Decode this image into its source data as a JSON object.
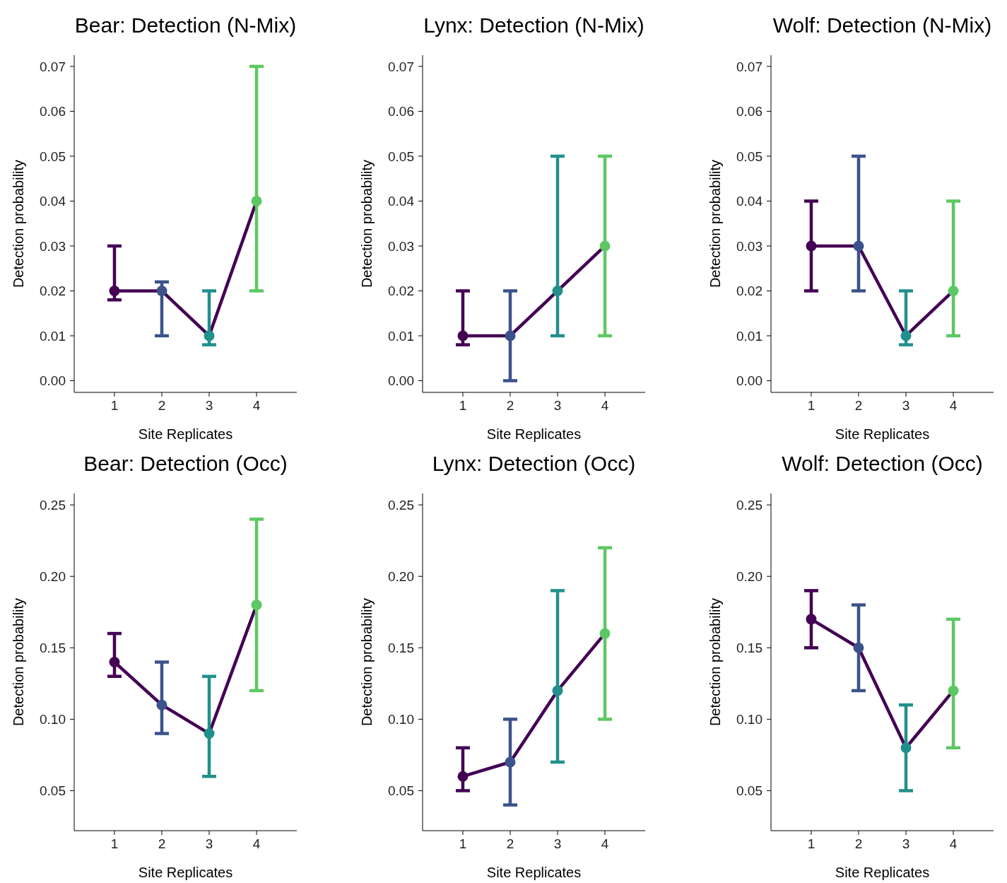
{
  "chart_data": [
    {
      "type": "line",
      "title": "Bear: Detection (N-Mix)",
      "xlabel": "Site Replicates",
      "ylabel": "Detection probability",
      "categories": [
        "1",
        "2",
        "3",
        "4"
      ],
      "values": [
        0.02,
        0.02,
        0.01,
        0.04
      ],
      "errors": [
        [
          0.018,
          0.03
        ],
        [
          0.01,
          0.022
        ],
        [
          0.008,
          0.02
        ],
        [
          0.02,
          0.07
        ]
      ],
      "color": "#440154",
      "colors": [
        "#440154",
        "#3b528b",
        "#21908c",
        "#5dc863"
      ],
      "marker": "circle",
      "ylim": [
        -0.0026,
        0.0725
      ],
      "yticks": [
        {
          "value": 0,
          "label": "0.00"
        },
        {
          "value": 0.01,
          "label": "0.01"
        },
        {
          "value": 0.02,
          "label": "0.02"
        },
        {
          "value": 0.03,
          "label": "0.03"
        },
        {
          "value": 0.04,
          "label": "0.04"
        },
        {
          "value": 0.05,
          "label": "0.05"
        },
        {
          "value": 0.06,
          "label": "0.06"
        },
        {
          "value": 0.07,
          "label": "0.07"
        }
      ],
      "grid": false
    },
    {
      "type": "line",
      "title": "Lynx: Detection (N-Mix)",
      "xlabel": "Site Replicates",
      "ylabel": "Detection probability",
      "categories": [
        "1",
        "2",
        "3",
        "4"
      ],
      "values": [
        0.01,
        0.01,
        0.02,
        0.03
      ],
      "errors": [
        [
          0.008,
          0.02
        ],
        [
          0,
          0.02
        ],
        [
          0.01,
          0.05
        ],
        [
          0.01,
          0.05
        ]
      ],
      "color": "#440154",
      "colors": [
        "#440154",
        "#3b528b",
        "#21908c",
        "#5dc863"
      ],
      "marker": "circle",
      "ylim": [
        -0.0026,
        0.0725
      ],
      "yticks": [
        {
          "value": 0,
          "label": "0.00"
        },
        {
          "value": 0.01,
          "label": "0.01"
        },
        {
          "value": 0.02,
          "label": "0.02"
        },
        {
          "value": 0.03,
          "label": "0.03"
        },
        {
          "value": 0.04,
          "label": "0.04"
        },
        {
          "value": 0.05,
          "label": "0.05"
        },
        {
          "value": 0.06,
          "label": "0.06"
        },
        {
          "value": 0.07,
          "label": "0.07"
        }
      ],
      "grid": false
    },
    {
      "type": "line",
      "title": "Wolf: Detection (N-Mix)",
      "xlabel": "Site Replicates",
      "ylabel": "Detection probability",
      "categories": [
        "1",
        "2",
        "3",
        "4"
      ],
      "values": [
        0.03,
        0.03,
        0.01,
        0.02
      ],
      "errors": [
        [
          0.02,
          0.04
        ],
        [
          0.02,
          0.05
        ],
        [
          0.008,
          0.02
        ],
        [
          0.01,
          0.04
        ]
      ],
      "color": "#440154",
      "colors": [
        "#440154",
        "#3b528b",
        "#21908c",
        "#5dc863"
      ],
      "marker": "circle",
      "ylim": [
        -0.0026,
        0.0725
      ],
      "yticks": [
        {
          "value": 0,
          "label": "0.00"
        },
        {
          "value": 0.01,
          "label": "0.01"
        },
        {
          "value": 0.02,
          "label": "0.02"
        },
        {
          "value": 0.03,
          "label": "0.03"
        },
        {
          "value": 0.04,
          "label": "0.04"
        },
        {
          "value": 0.05,
          "label": "0.05"
        },
        {
          "value": 0.06,
          "label": "0.06"
        },
        {
          "value": 0.07,
          "label": "0.07"
        }
      ],
      "grid": false
    },
    {
      "type": "line",
      "title": "Bear: Detection (Occ)",
      "xlabel": "Site Replicates",
      "ylabel": "Detection probability",
      "categories": [
        "1",
        "2",
        "3",
        "4"
      ],
      "values": [
        0.14,
        0.11,
        0.09,
        0.18
      ],
      "errors": [
        [
          0.13,
          0.16
        ],
        [
          0.09,
          0.14
        ],
        [
          0.06,
          0.13
        ],
        [
          0.12,
          0.24
        ]
      ],
      "color": "#440154",
      "colors": [
        "#440154",
        "#3b528b",
        "#21908c",
        "#5dc863"
      ],
      "marker": "circle",
      "ylim": [
        0.022,
        0.258
      ],
      "yticks": [
        {
          "value": 0.05,
          "label": "0.05"
        },
        {
          "value": 0.1,
          "label": "0.10"
        },
        {
          "value": 0.15,
          "label": "0.15"
        },
        {
          "value": 0.2,
          "label": "0.20"
        },
        {
          "value": 0.25,
          "label": "0.25"
        }
      ],
      "grid": false
    },
    {
      "type": "line",
      "title": "Lynx: Detection (Occ)",
      "xlabel": "Site Replicates",
      "ylabel": "Detection probability",
      "categories": [
        "1",
        "2",
        "3",
        "4"
      ],
      "values": [
        0.06,
        0.07,
        0.12,
        0.16
      ],
      "errors": [
        [
          0.05,
          0.08
        ],
        [
          0.04,
          0.1
        ],
        [
          0.07,
          0.19
        ],
        [
          0.1,
          0.22
        ]
      ],
      "color": "#440154",
      "colors": [
        "#440154",
        "#3b528b",
        "#21908c",
        "#5dc863"
      ],
      "marker": "circle",
      "ylim": [
        0.022,
        0.258
      ],
      "yticks": [
        {
          "value": 0.05,
          "label": "0.05"
        },
        {
          "value": 0.1,
          "label": "0.10"
        },
        {
          "value": 0.15,
          "label": "0.15"
        },
        {
          "value": 0.2,
          "label": "0.20"
        },
        {
          "value": 0.25,
          "label": "0.25"
        }
      ],
      "grid": false
    },
    {
      "type": "line",
      "title": "Wolf: Detection (Occ)",
      "xlabel": "Site Replicates",
      "ylabel": "Detection probability",
      "categories": [
        "1",
        "2",
        "3",
        "4"
      ],
      "values": [
        0.17,
        0.15,
        0.08,
        0.12
      ],
      "errors": [
        [
          0.15,
          0.19
        ],
        [
          0.12,
          0.18
        ],
        [
          0.05,
          0.11
        ],
        [
          0.08,
          0.17
        ]
      ],
      "color": "#440154",
      "colors": [
        "#440154",
        "#3b528b",
        "#21908c",
        "#5dc863"
      ],
      "marker": "circle",
      "ylim": [
        0.022,
        0.258
      ],
      "yticks": [
        {
          "value": 0.05,
          "label": "0.05"
        },
        {
          "value": 0.1,
          "label": "0.10"
        },
        {
          "value": 0.15,
          "label": "0.15"
        },
        {
          "value": 0.2,
          "label": "0.20"
        },
        {
          "value": 0.25,
          "label": "0.25"
        }
      ],
      "grid": false
    }
  ]
}
